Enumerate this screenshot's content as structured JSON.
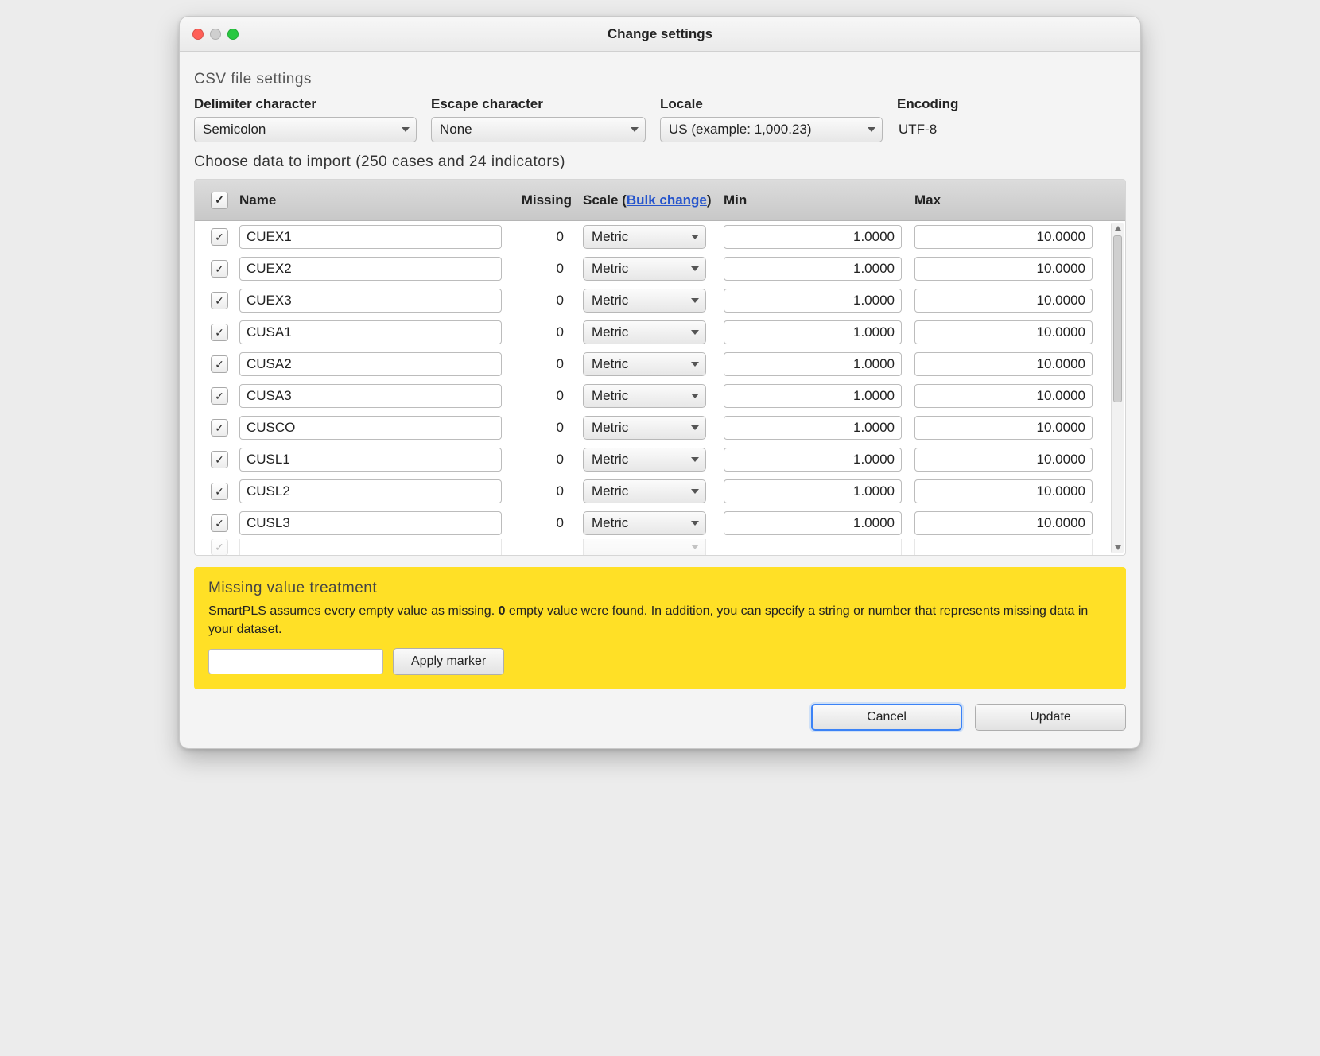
{
  "window": {
    "title": "Change settings"
  },
  "csv_section": {
    "header": "CSV file settings",
    "delimiter_label": "Delimiter character",
    "delimiter_value": "Semicolon",
    "escape_label": "Escape character",
    "escape_value": "None",
    "locale_label": "Locale",
    "locale_value": "US (example: 1,000.23)",
    "encoding_label": "Encoding",
    "encoding_value": "UTF-8"
  },
  "choose_line": "Choose data to import (250 cases and 24 indicators)",
  "table": {
    "headers": {
      "name": "Name",
      "missing": "Missing",
      "scale_prefix": "Scale (",
      "bulk_change": "Bulk change",
      "scale_suffix": ")",
      "min": "Min",
      "max": "Max"
    },
    "rows": [
      {
        "checked": true,
        "name": "CUEX1",
        "missing": "0",
        "scale": "Metric",
        "min": "1.0000",
        "max": "10.0000"
      },
      {
        "checked": true,
        "name": "CUEX2",
        "missing": "0",
        "scale": "Metric",
        "min": "1.0000",
        "max": "10.0000"
      },
      {
        "checked": true,
        "name": "CUEX3",
        "missing": "0",
        "scale": "Metric",
        "min": "1.0000",
        "max": "10.0000"
      },
      {
        "checked": true,
        "name": "CUSA1",
        "missing": "0",
        "scale": "Metric",
        "min": "1.0000",
        "max": "10.0000"
      },
      {
        "checked": true,
        "name": "CUSA2",
        "missing": "0",
        "scale": "Metric",
        "min": "1.0000",
        "max": "10.0000"
      },
      {
        "checked": true,
        "name": "CUSA3",
        "missing": "0",
        "scale": "Metric",
        "min": "1.0000",
        "max": "10.0000"
      },
      {
        "checked": true,
        "name": "CUSCO",
        "missing": "0",
        "scale": "Metric",
        "min": "1.0000",
        "max": "10.0000"
      },
      {
        "checked": true,
        "name": "CUSL1",
        "missing": "0",
        "scale": "Metric",
        "min": "1.0000",
        "max": "10.0000"
      },
      {
        "checked": true,
        "name": "CUSL2",
        "missing": "0",
        "scale": "Metric",
        "min": "1.0000",
        "max": "10.0000"
      },
      {
        "checked": true,
        "name": "CUSL3",
        "missing": "0",
        "scale": "Metric",
        "min": "1.0000",
        "max": "10.0000"
      }
    ]
  },
  "missing_panel": {
    "title": "Missing value treatment",
    "text_before": "SmartPLS assumes every empty value as missing. ",
    "text_bold": "0",
    "text_after": " empty value were found. In addition, you can specify a string or number that represents missing data in your dataset.",
    "apply_label": "Apply marker"
  },
  "footer": {
    "cancel": "Cancel",
    "update": "Update"
  },
  "colors": {
    "accent": "#3b82f6",
    "link": "#2554cc",
    "panel_bg": "#ffe026",
    "header_grad_top": "#dcdcdc",
    "header_grad_bot": "#c8c8c8"
  }
}
